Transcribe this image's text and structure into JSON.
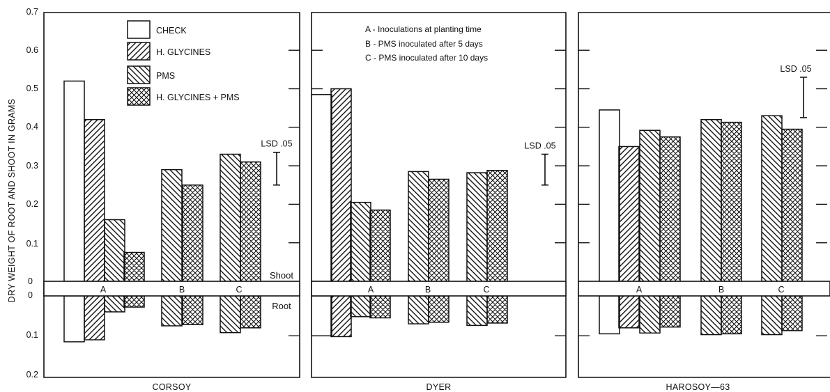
{
  "figure": {
    "ylabel": "DRY WEIGHT OF ROOT AND SHOOT IN GRAMS",
    "upper_label": "Shoot",
    "lower_label": "Root"
  },
  "legend": {
    "treatments": [
      {
        "key": "check",
        "label": "CHECK",
        "pattern": "none"
      },
      {
        "key": "hg",
        "label": "H. GLYCINES",
        "pattern": "diag-right"
      },
      {
        "key": "pms",
        "label": "PMS",
        "pattern": "diag-left"
      },
      {
        "key": "hgpms",
        "label": "H. GLYCINES + PMS",
        "pattern": "crosshatch"
      }
    ],
    "notes": [
      "A - Inoculations at planting time",
      "B - PMS inoculated after 5 days",
      "C - PMS inoculated after 10 days"
    ],
    "lsd_label": "LSD .05"
  },
  "colors": {
    "stroke": "#111111",
    "background": "#ffffff"
  },
  "chart_data": [
    {
      "type": "bar",
      "title": "CORSOY",
      "shoot_axis": {
        "ticks": [
          "0",
          "0.1",
          "0.2",
          "0.3",
          "0.4",
          "0.5",
          "0.6",
          "0.7"
        ],
        "ylim": [
          0,
          0.7
        ]
      },
      "root_axis": {
        "ticks": [
          "0",
          "0.1",
          "0.2"
        ],
        "ylim": [
          0,
          0.2
        ]
      },
      "groups": [
        {
          "label": "A",
          "bars": [
            {
              "treatment": "check",
              "shoot": 0.52,
              "root": 0.115
            },
            {
              "treatment": "hg",
              "shoot": 0.42,
              "root": 0.11
            },
            {
              "treatment": "pms",
              "shoot": 0.16,
              "root": 0.04
            },
            {
              "treatment": "hgpms",
              "shoot": 0.075,
              "root": 0.028
            }
          ]
        },
        {
          "label": "B",
          "bars": [
            {
              "treatment": "pms",
              "shoot": 0.29,
              "root": 0.075
            },
            {
              "treatment": "hgpms",
              "shoot": 0.25,
              "root": 0.072
            }
          ]
        },
        {
          "label": "C",
          "bars": [
            {
              "treatment": "pms",
              "shoot": 0.33,
              "root": 0.092
            },
            {
              "treatment": "hgpms",
              "shoot": 0.31,
              "root": 0.08
            }
          ]
        }
      ],
      "lsd_05": {
        "low": 0.25,
        "high": 0.335
      }
    },
    {
      "type": "bar",
      "title": "DYER",
      "groups": [
        {
          "label": "A",
          "bars": [
            {
              "treatment": "check",
              "shoot": 0.485,
              "root": 0.1
            },
            {
              "treatment": "hg",
              "shoot": 0.5,
              "root": 0.102
            },
            {
              "treatment": "pms",
              "shoot": 0.205,
              "root": 0.052
            },
            {
              "treatment": "hgpms",
              "shoot": 0.185,
              "root": 0.055
            }
          ]
        },
        {
          "label": "B",
          "bars": [
            {
              "treatment": "pms",
              "shoot": 0.285,
              "root": 0.07
            },
            {
              "treatment": "hgpms",
              "shoot": 0.265,
              "root": 0.066
            }
          ]
        },
        {
          "label": "C",
          "bars": [
            {
              "treatment": "pms",
              "shoot": 0.282,
              "root": 0.074
            },
            {
              "treatment": "hgpms",
              "shoot": 0.288,
              "root": 0.068
            }
          ]
        }
      ],
      "lsd_05": {
        "low": 0.25,
        "high": 0.33
      }
    },
    {
      "type": "bar",
      "title": "HAROSOY—63",
      "groups": [
        {
          "label": "A",
          "bars": [
            {
              "treatment": "check",
              "shoot": 0.445,
              "root": 0.095
            },
            {
              "treatment": "hg",
              "shoot": 0.35,
              "root": 0.08
            },
            {
              "treatment": "pms",
              "shoot": 0.392,
              "root": 0.093
            },
            {
              "treatment": "hgpms",
              "shoot": 0.375,
              "root": 0.078
            }
          ]
        },
        {
          "label": "B",
          "bars": [
            {
              "treatment": "pms",
              "shoot": 0.42,
              "root": 0.097
            },
            {
              "treatment": "hgpms",
              "shoot": 0.413,
              "root": 0.095
            }
          ]
        },
        {
          "label": "C",
          "bars": [
            {
              "treatment": "pms",
              "shoot": 0.43,
              "root": 0.097
            },
            {
              "treatment": "hgpms",
              "shoot": 0.395,
              "root": 0.087
            }
          ]
        }
      ],
      "lsd_05": {
        "low": 0.425,
        "high": 0.53
      }
    }
  ]
}
